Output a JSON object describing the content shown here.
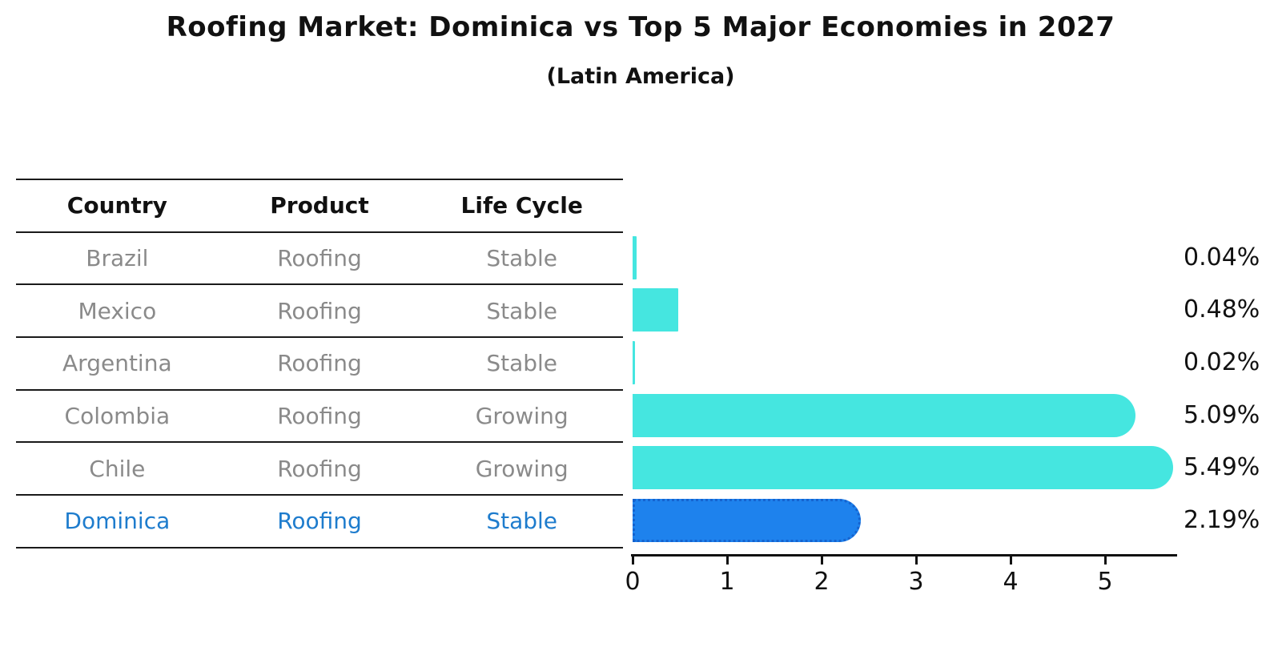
{
  "header": {
    "title": "Roofing Market: Dominica vs Top 5 Major Economies in 2027",
    "subtitle": "(Latin America)"
  },
  "table": {
    "columns": [
      "Country",
      "Product",
      "Life Cycle"
    ],
    "rows": [
      {
        "country": "Brazil",
        "product": "Roofing",
        "life_cycle": "Stable",
        "highlight": false
      },
      {
        "country": "Mexico",
        "product": "Roofing",
        "life_cycle": "Stable",
        "highlight": false
      },
      {
        "country": "Argentina",
        "product": "Roofing",
        "life_cycle": "Stable",
        "highlight": false
      },
      {
        "country": "Colombia",
        "product": "Roofing",
        "life_cycle": "Growing",
        "highlight": false
      },
      {
        "country": "Chile",
        "product": "Roofing",
        "life_cycle": "Growing",
        "highlight": false
      },
      {
        "country": "Dominica",
        "product": "Roofing",
        "life_cycle": "Stable",
        "highlight": true
      }
    ]
  },
  "chart_data": {
    "type": "bar",
    "orientation": "horizontal",
    "title": "Roofing Market: Dominica vs Top 5 Major Economies in 2027",
    "subtitle": "(Latin America)",
    "categories": [
      "Brazil",
      "Mexico",
      "Argentina",
      "Colombia",
      "Chile",
      "Dominica"
    ],
    "values": [
      0.04,
      0.48,
      0.02,
      5.09,
      5.49,
      2.19
    ],
    "value_labels": [
      "0.04%",
      "0.48%",
      "0.02%",
      "5.09%",
      "5.49%",
      "2.19%"
    ],
    "x_ticks": [
      "0",
      "1",
      "2",
      "3",
      "4",
      "5"
    ],
    "xlim": [
      0,
      5.77
    ],
    "grid": false,
    "legend": false,
    "highlight_category": "Dominica",
    "colors": {
      "bar": "#45e6e0",
      "highlight_bar": "#1e82ed",
      "highlight_bar_border": "#1563cf",
      "row_text": "#8a8a8a",
      "highlight_text": "#1e7ccd",
      "axis": "#111111",
      "title_text": "#111111"
    }
  }
}
